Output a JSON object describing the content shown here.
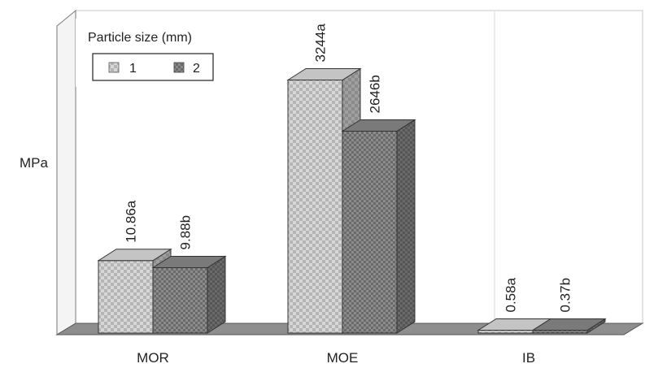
{
  "chart_data": {
    "type": "bar",
    "title": "",
    "ylabel": "MPa",
    "xlabel": "",
    "categories": [
      "MOR",
      "MOE",
      "IB"
    ],
    "legend": {
      "title": "Particle size (mm)",
      "placement": "top-left",
      "entries": [
        "1",
        "2"
      ]
    },
    "series": [
      {
        "name": "1",
        "values": [
          10.86,
          3244,
          0.58
        ],
        "data_labels": [
          "10.86a",
          "3244a",
          "0.58a"
        ]
      },
      {
        "name": "2",
        "values": [
          9.88,
          2646,
          0.37
        ],
        "data_labels": [
          "9.88b",
          "2646b",
          "0.37b"
        ]
      }
    ],
    "display_heights": [
      [
        25.5,
        89,
        1
      ],
      [
        23,
        71,
        1
      ]
    ],
    "grid": false,
    "style": "3d-clustered"
  }
}
